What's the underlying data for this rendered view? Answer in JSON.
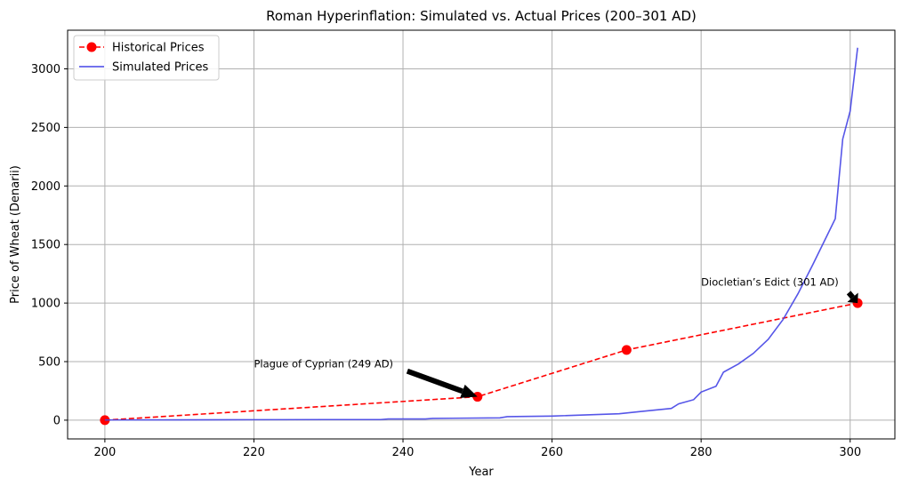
{
  "chart_data": {
    "type": "line",
    "title": "Roman Hyperinflation: Simulated vs. Actual Prices (200–301 AD)",
    "xlabel": "Year",
    "ylabel": "Price of Wheat (Denarii)",
    "xlim": [
      195,
      306
    ],
    "ylim": [
      -160,
      3330
    ],
    "xticks": [
      200,
      220,
      240,
      260,
      280,
      300
    ],
    "yticks": [
      0,
      500,
      1000,
      1500,
      2000,
      2500,
      3000
    ],
    "grid": true,
    "legend_position": "top-left",
    "series": [
      {
        "name": "Historical Prices",
        "color": "#ff0000",
        "style": "dashed",
        "marker": "circle",
        "x": [
          200,
          250,
          270,
          301
        ],
        "y": [
          0,
          200,
          600,
          1000
        ]
      },
      {
        "name": "Simulated Prices",
        "color": "#4444e6",
        "style": "solid",
        "marker": "none",
        "x": [
          200,
          210,
          220,
          230,
          237,
          238,
          243,
          244,
          253,
          254,
          260,
          269,
          272,
          276,
          277,
          279,
          280,
          282,
          283,
          285,
          287,
          289,
          291,
          293,
          295,
          297,
          298,
          299,
          300,
          301
        ],
        "y": [
          2,
          3,
          4,
          5,
          5,
          10,
          10,
          15,
          20,
          30,
          35,
          55,
          75,
          100,
          140,
          175,
          240,
          290,
          410,
          480,
          570,
          690,
          860,
          1080,
          1330,
          1590,
          1720,
          2400,
          2640,
          3180
        ]
      }
    ],
    "annotations": [
      {
        "text": "Plague of Cyprian (249 AD)",
        "text_x": 220,
        "text_y": 480,
        "target_x": 250,
        "target_y": 200
      },
      {
        "text": "Diocletian’s Edict (301 AD)",
        "text_x": 280,
        "text_y": 1180,
        "target_x": 301,
        "target_y": 1000
      }
    ]
  }
}
